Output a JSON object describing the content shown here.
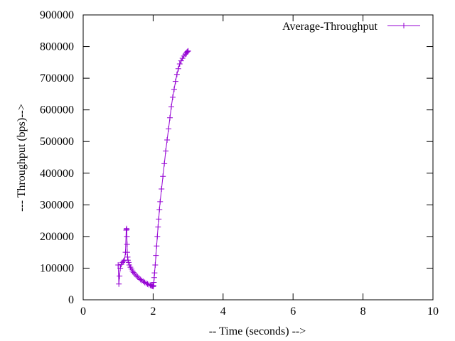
{
  "chart_data": {
    "type": "line",
    "title": "",
    "xlabel": "-- Time (seconds) -->",
    "ylabel": "--- Throughput (bps)-->",
    "xlim": [
      0,
      10
    ],
    "ylim": [
      0,
      900000
    ],
    "xticks": [
      0,
      2,
      4,
      6,
      8,
      10
    ],
    "yticks": [
      0,
      100000,
      200000,
      300000,
      400000,
      500000,
      600000,
      700000,
      800000,
      900000
    ],
    "grid": false,
    "legend_position": "top-right",
    "series": [
      {
        "name": "Average-Throughput",
        "color": "#9400d3",
        "marker": "plus",
        "x": [
          1.0,
          1.02,
          1.04,
          1.06,
          1.09,
          1.12,
          1.15,
          1.18,
          1.21,
          1.23,
          1.24,
          1.245,
          1.25,
          1.255,
          1.26,
          1.27,
          1.28,
          1.3,
          1.32,
          1.35,
          1.38,
          1.41,
          1.44,
          1.48,
          1.52,
          1.56,
          1.6,
          1.64,
          1.68,
          1.72,
          1.76,
          1.8,
          1.84,
          1.88,
          1.92,
          1.95,
          1.97,
          1.99,
          2.0,
          2.01,
          2.02,
          2.03,
          2.04,
          2.06,
          2.08,
          2.1,
          2.12,
          2.14,
          2.16,
          2.18,
          2.2,
          2.24,
          2.28,
          2.32,
          2.36,
          2.4,
          2.44,
          2.48,
          2.52,
          2.56,
          2.6,
          2.64,
          2.68,
          2.72,
          2.76,
          2.8,
          2.84,
          2.88,
          2.92,
          2.95,
          2.97,
          2.99,
          3.0
        ],
        "y": [
          110000,
          50000,
          75000,
          100000,
          112000,
          118000,
          122000,
          125000,
          150000,
          220000,
          225000,
          222000,
          200000,
          175000,
          150000,
          135000,
          125000,
          118000,
          110000,
          103000,
          97000,
          91000,
          86000,
          81000,
          76000,
          72000,
          68000,
          64000,
          61000,
          58000,
          55000,
          52000,
          50000,
          48000,
          46000,
          45000,
          44000,
          43000,
          42000,
          45000,
          55000,
          70000,
          85000,
          110000,
          140000,
          170000,
          200000,
          230000,
          255000,
          285000,
          310000,
          350000,
          390000,
          430000,
          470000,
          505000,
          540000,
          575000,
          610000,
          640000,
          665000,
          690000,
          712000,
          730000,
          745000,
          755000,
          763000,
          770000,
          776000,
          780000,
          783000,
          785000,
          786000
        ]
      }
    ]
  }
}
